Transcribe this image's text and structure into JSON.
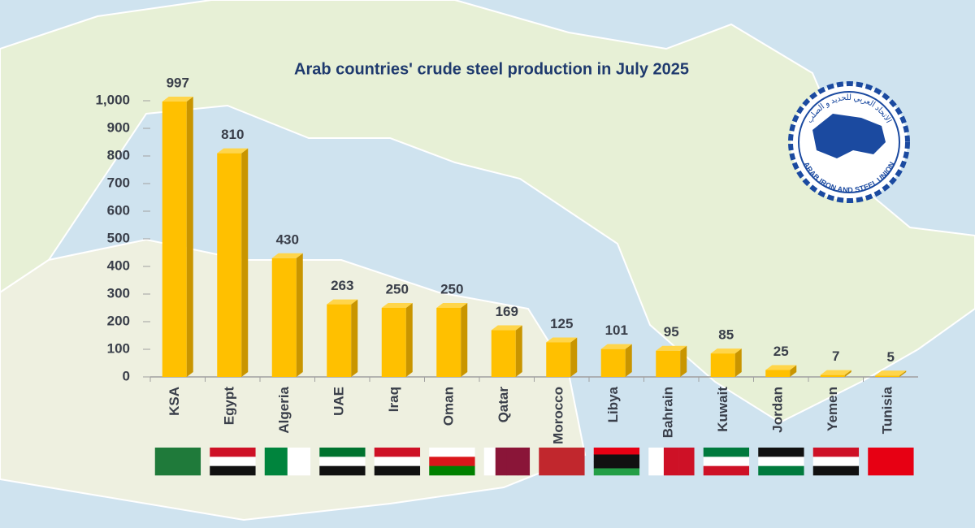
{
  "chart_data": {
    "type": "bar",
    "title": "Arab countries' crude steel production in July 2025",
    "categories": [
      "KSA",
      "Egypt",
      "Algeria",
      "UAE",
      "Iraq",
      "Oman",
      "Qatar",
      "Morocco",
      "Libya",
      "Bahrain",
      "Kuwait",
      "Jordan",
      "Yemen",
      "Tunisia"
    ],
    "values": [
      997,
      810,
      430,
      263,
      250,
      250,
      169,
      125,
      101,
      95,
      85,
      25,
      7,
      5
    ],
    "color": "#ffc000",
    "ylim": [
      0,
      1000
    ],
    "yticks": [
      0,
      100,
      200,
      300,
      400,
      500,
      600,
      700,
      800,
      900,
      {
        "value": 1000,
        "label": "1,000"
      }
    ],
    "grid": false
  },
  "logo": {
    "text": "ARAB IRON AND STEEL UNION",
    "arabic_text": "الاتحاد العربي للحديد و الصلب"
  }
}
